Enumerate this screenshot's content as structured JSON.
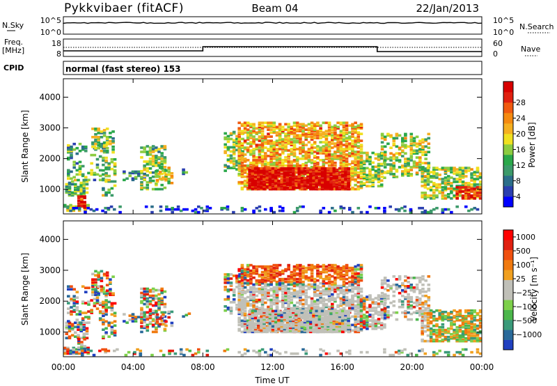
{
  "header": {
    "station": "Pykkvibaer (fitACF)",
    "beam": "Beam 04",
    "date": "22/Jan/2013"
  },
  "status_panels": {
    "nsky_label": "N.Sky",
    "nsky_ticks": [
      "10^5",
      "10^0"
    ],
    "nsearch_label": "N.Search",
    "nsearch_ticks": [
      "10^5",
      "10^0"
    ],
    "freq_label_1": "Freq.",
    "freq_label_2": "[MHz]",
    "freq_ticks": [
      "18",
      "8"
    ],
    "nave_label": "Nave",
    "nave_ticks": [
      "60",
      "0"
    ],
    "cpid_label": "CPID",
    "cpid_text": "normal (fast stereo) 153"
  },
  "chart_data": [
    {
      "type": "heatmap",
      "name": "power",
      "ylabel": "Slant Range [km]",
      "yticks": [
        "4000",
        "3000",
        "2000",
        "1000"
      ],
      "ylim": [
        200,
        4600
      ],
      "xlim": [
        0,
        24
      ],
      "colorbar_label": "Power [dB]",
      "colorbar_ticks": [
        "28",
        "24",
        "20",
        "16",
        "12",
        "8",
        "4"
      ],
      "colorbar_colors": [
        "#0000ff",
        "#2b3fb0",
        "#2c6e8a",
        "#3c9a6a",
        "#2aa84a",
        "#8ccc40",
        "#f0e020",
        "#f5b020",
        "#f58a10",
        "#f05a10",
        "#e02010",
        "#d80000"
      ]
    },
    {
      "type": "heatmap",
      "name": "velocity",
      "ylabel": "Slant Range [km]",
      "yticks": [
        "4000",
        "3000",
        "2000",
        "1000"
      ],
      "ylim": [
        200,
        4600
      ],
      "xlim": [
        0,
        24
      ],
      "colorbar_label": "Velocity [m s⁻¹]",
      "colorbar_ticks": [
        "1000",
        "500",
        "100",
        "25",
        "−25",
        "−100",
        "−500",
        "−1000"
      ],
      "colorbar_colors": [
        "#2040c0",
        "#2a6a9a",
        "#3a9a7a",
        "#4bb64b",
        "#7dd04a",
        "#c0c0b8",
        "#c0c0b8",
        "#f0a020",
        "#f07a10",
        "#f05010",
        "#e02010",
        "#ff0000"
      ]
    }
  ],
  "xaxis": {
    "label": "Time UT",
    "ticks": [
      "00:00",
      "04:00",
      "08:00",
      "12:00",
      "16:00",
      "20:00",
      "00:00"
    ]
  }
}
